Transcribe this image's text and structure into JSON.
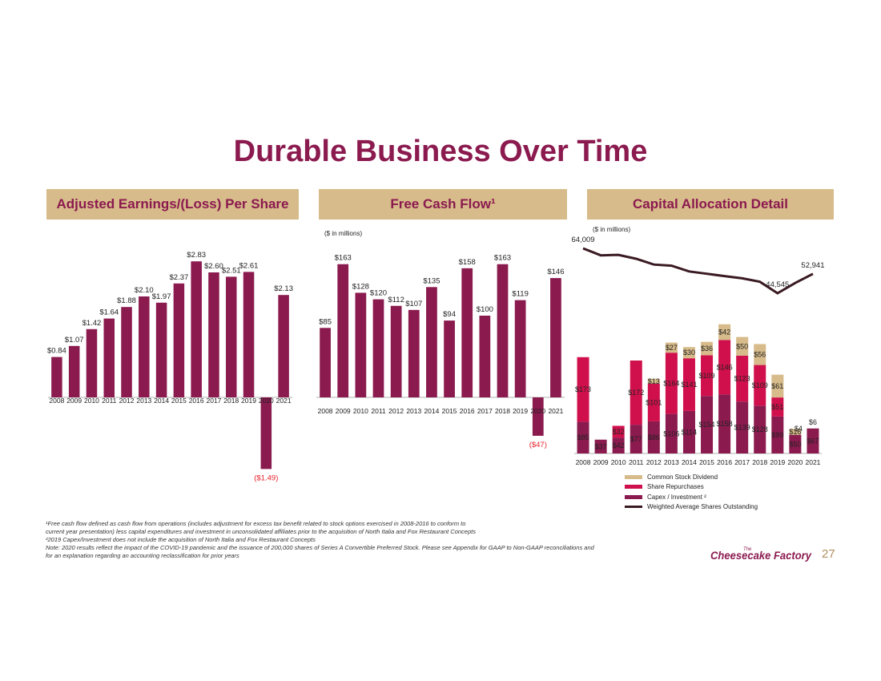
{
  "title": "Durable Business Over Time",
  "bands": {
    "eps": "Adjusted Earnings/(Loss) Per Share",
    "fcf": "Free Cash Flow¹",
    "cap": "Capital Allocation Detail"
  },
  "units": {
    "fcf": "($ in millions)",
    "cap": "($ in millions)"
  },
  "colors": {
    "maroon": "#8b1a4f",
    "red": "#d0104c",
    "gold": "#d7bb8a",
    "line": "#3a1a22",
    "negative_label": "#e8202a"
  },
  "chart_data": [
    {
      "type": "bar",
      "title": "Adjusted Earnings/(Loss) Per Share",
      "categories": [
        "2008",
        "2009",
        "2010",
        "2011",
        "2012",
        "2013",
        "2014",
        "2015",
        "2016",
        "2017",
        "2018",
        "2019",
        "2020",
        "2021"
      ],
      "values": [
        0.84,
        1.07,
        1.42,
        1.64,
        1.88,
        2.1,
        1.97,
        2.37,
        2.83,
        2.6,
        2.51,
        2.61,
        -1.49,
        2.13
      ],
      "labels": [
        "$0.84",
        "$1.07",
        "$1.42",
        "$1.64",
        "$1.88",
        "$2.10",
        "$1.97",
        "$2.37",
        "$2.83",
        "$2.60",
        "$2.51",
        "$2.61",
        "($1.49)",
        "$2.13"
      ]
    },
    {
      "type": "bar",
      "title": "Free Cash Flow¹",
      "categories": [
        "2008",
        "2009",
        "2010",
        "2011",
        "2012",
        "2013",
        "2014",
        "2015",
        "2016",
        "2017",
        "2018",
        "2019",
        "2020",
        "2021"
      ],
      "values": [
        85,
        163,
        128,
        120,
        112,
        107,
        135,
        94,
        158,
        100,
        163,
        119,
        -47,
        146
      ],
      "labels": [
        "$85",
        "$163",
        "$128",
        "$120",
        "$112",
        "$107",
        "$135",
        "$94",
        "$158",
        "$100",
        "$163",
        "$119",
        "($47)",
        "$146"
      ]
    },
    {
      "type": "bar",
      "title": "Capital Allocation Detail",
      "categories": [
        "2008",
        "2009",
        "2010",
        "2011",
        "2012",
        "2013",
        "2014",
        "2015",
        "2016",
        "2017",
        "2018",
        "2019",
        "2020",
        "2021"
      ],
      "series": [
        {
          "name": "Capex / Investment ²",
          "values": [
            85,
            37,
            42,
            77,
            86,
            106,
            114,
            154,
            158,
            139,
            128,
            99,
            50,
            67
          ],
          "labels": [
            "$85",
            "$37",
            "$42",
            "$77",
            "$86",
            "$106",
            "$114",
            "$154",
            "$158",
            "$139",
            "$128",
            "$99",
            "$50",
            "$67"
          ]
        },
        {
          "name": "Share Repurchases",
          "values": [
            173,
            0,
            32,
            172,
            101,
            164,
            141,
            109,
            146,
            123,
            109,
            51,
            0,
            0
          ],
          "labels": [
            "$173",
            "",
            "$32",
            "$172",
            "$101",
            "$164",
            "$141",
            "$109",
            "$146",
            "$123",
            "$109",
            "$51",
            "",
            ""
          ]
        },
        {
          "name": "Common Stock Dividend",
          "values": [
            0,
            0,
            0,
            0,
            13,
            27,
            30,
            36,
            42,
            50,
            56,
            61,
            16,
            0
          ],
          "labels": [
            "",
            "",
            "",
            "",
            "$13",
            "$27",
            "$30",
            "$36",
            "$42",
            "$50",
            "$56",
            "$61",
            "$16",
            ""
          ]
        },
        {
          "name": "Weighted Average Shares Outstanding",
          "type": "line",
          "values": [
            64009,
            61000,
            61200,
            59500,
            57000,
            56500,
            54000,
            53000,
            52000,
            51000,
            49500,
            44545,
            49000,
            52941
          ]
        }
      ],
      "extra_labels": {
        "small_2020": "$4",
        "small_2021": "$6"
      },
      "line_labels": [
        {
          "index": 0,
          "text": "64,009"
        },
        {
          "index": 11,
          "text": "44,545"
        },
        {
          "index": 13,
          "text": "52,941"
        }
      ]
    }
  ],
  "legend": [
    "Common Stock Dividend",
    "Share Repurchases",
    "Capex / Investment ²",
    "Weighted Average Shares Outstanding"
  ],
  "footnotes": [
    "¹Free cash flow defined as cash flow from operations (includes adjustment for excess tax benefit related to stock options exercised in 2008-2016 to conform to",
    "current year presentation) less capital expenditures and investment in unconsolidated affiliates prior to the acquisition of North Italia and Fox Restaurant Concepts",
    "²2019 Capex/Investment does not include the acquisition of North Italia and Fox Restaurant Concepts",
    "Note: 2020 results reflect the impact of the COVID-19 pandemic and the issuance of 200,000 shares of Series A Convertible Preferred Stock. Please see Appendix for GAAP to Non-GAAP reconciliations and",
    "for an explanation regarding an accounting reclassification for prior years"
  ],
  "logo": {
    "small": "The",
    "text": "Cheesecake Factory"
  },
  "page_number": "27"
}
